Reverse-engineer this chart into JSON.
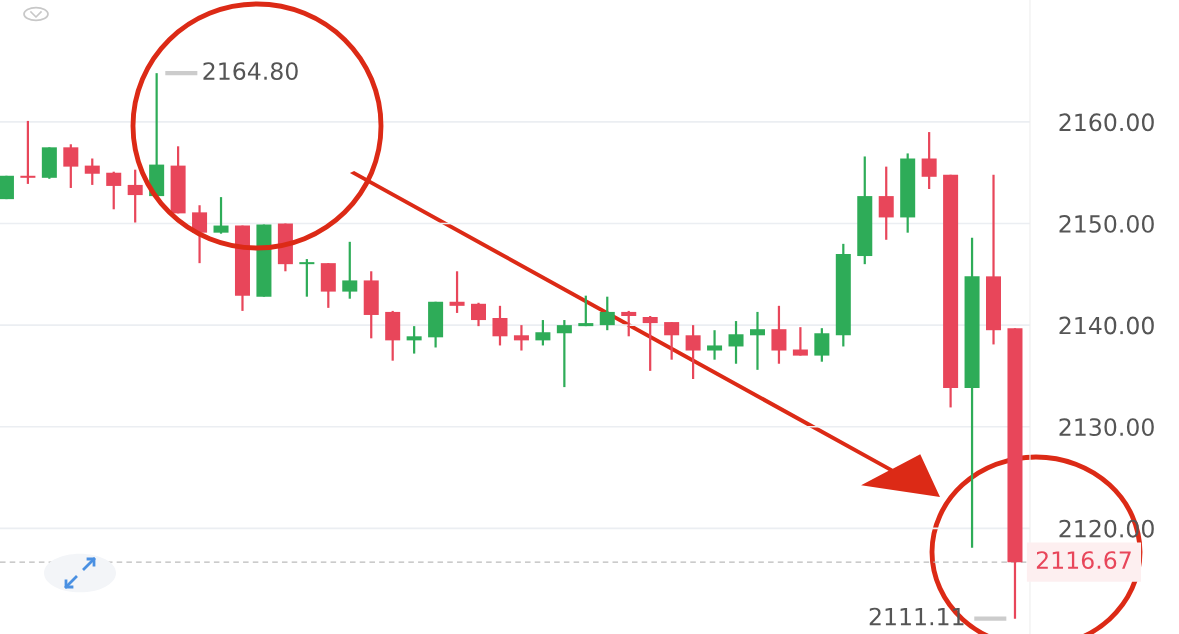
{
  "chart_data": {
    "type": "candlestick",
    "categories": [
      null,
      null,
      null,
      null,
      null,
      null,
      null,
      null,
      null,
      null,
      null,
      null,
      null,
      null,
      null,
      null,
      null,
      null,
      null,
      null,
      null,
      null,
      null,
      null,
      null,
      null,
      null,
      null,
      null,
      null,
      null,
      null,
      null,
      null,
      null,
      null,
      null,
      null,
      null,
      null,
      null,
      null,
      null,
      null,
      null,
      null,
      null,
      null
    ],
    "ohlc": [
      [
        2152.4,
        2154.7,
        2152.4,
        2154.7
      ],
      [
        2154.7,
        2160.1,
        2153.9,
        2154.5
      ],
      [
        2154.5,
        2157.5,
        2154.4,
        2157.5
      ],
      [
        2157.5,
        2157.8,
        2153.5,
        2155.6
      ],
      [
        2155.7,
        2156.4,
        2153.8,
        2154.9
      ],
      [
        2155.0,
        2155.1,
        2151.4,
        2153.7
      ],
      [
        2153.8,
        2155.3,
        2150.1,
        2152.8
      ],
      [
        2152.7,
        2164.8,
        2152.7,
        2155.8
      ],
      [
        2155.7,
        2157.6,
        2151.0,
        2151.0
      ],
      [
        2151.1,
        2151.8,
        2146.1,
        2149.1
      ],
      [
        2149.1,
        2152.6,
        2149.0,
        2149.8
      ],
      [
        2149.8,
        2149.8,
        2141.4,
        2142.9
      ],
      [
        2142.8,
        2149.9,
        2142.8,
        2149.9
      ],
      [
        2150.0,
        2150.0,
        2145.3,
        2146.0
      ],
      [
        2146.0,
        2146.5,
        2142.8,
        2146.2
      ],
      [
        2146.1,
        2146.1,
        2141.7,
        2143.3
      ],
      [
        2143.3,
        2148.2,
        2142.6,
        2144.4
      ],
      [
        2144.4,
        2145.3,
        2138.7,
        2141.0
      ],
      [
        2141.3,
        2141.4,
        2136.5,
        2138.5
      ],
      [
        2138.5,
        2139.9,
        2137.2,
        2138.9
      ],
      [
        2138.8,
        2142.3,
        2137.8,
        2142.3
      ],
      [
        2142.3,
        2145.3,
        2141.2,
        2141.9
      ],
      [
        2142.1,
        2142.2,
        2139.9,
        2140.5
      ],
      [
        2140.7,
        2141.9,
        2138.0,
        2138.9
      ],
      [
        2139.0,
        2140.0,
        2137.5,
        2138.5
      ],
      [
        2138.5,
        2140.5,
        2138.0,
        2139.3
      ],
      [
        2139.2,
        2140.5,
        2133.9,
        2140.0
      ],
      [
        2139.9,
        2142.9,
        2139.9,
        2140.2
      ],
      [
        2140.0,
        2142.8,
        2139.5,
        2141.3
      ],
      [
        2141.3,
        2141.4,
        2138.9,
        2140.9
      ],
      [
        2140.8,
        2140.9,
        2135.5,
        2140.2
      ],
      [
        2140.3,
        2140.3,
        2136.6,
        2139.0
      ],
      [
        2139.0,
        2140.0,
        2134.7,
        2137.5
      ],
      [
        2137.5,
        2139.5,
        2136.6,
        2138.0
      ],
      [
        2137.9,
        2140.4,
        2136.2,
        2139.1
      ],
      [
        2139.0,
        2141.3,
        2135.6,
        2139.6
      ],
      [
        2139.6,
        2141.9,
        2136.2,
        2137.5
      ],
      [
        2137.6,
        2139.8,
        2137.0,
        2137.0
      ],
      [
        2137.0,
        2139.7,
        2136.4,
        2139.2
      ],
      [
        2139.0,
        2148.0,
        2137.9,
        2147.0
      ],
      [
        2146.8,
        2156.6,
        2146.0,
        2152.7
      ],
      [
        2152.7,
        2155.6,
        2148.4,
        2150.6
      ],
      [
        2150.6,
        2156.9,
        2149.1,
        2156.4
      ],
      [
        2156.4,
        2159.0,
        2153.4,
        2154.6
      ],
      [
        2154.8,
        2154.8,
        2131.9,
        2133.8
      ],
      [
        2133.8,
        2148.6,
        2118.1,
        2144.8
      ],
      [
        2144.8,
        2154.8,
        2138.1,
        2139.5
      ],
      [
        2139.7,
        2139.7,
        2111.11,
        2116.67
      ]
    ],
    "colors": [
      "#2eac58",
      "#e8465a",
      "#2eac58",
      "#e8465a",
      "#e8465a",
      "#e8465a",
      "#e8465a",
      "#2eac58",
      "#e8465a",
      "#e8465a",
      "#2eac58",
      "#e8465a",
      "#2eac58",
      "#e8465a",
      "#2eac58",
      "#e8465a",
      "#2eac58",
      "#e8465a",
      "#e8465a",
      "#2eac58",
      "#2eac58",
      "#e8465a",
      "#e8465a",
      "#e8465a",
      "#e8465a",
      "#2eac58",
      "#2eac58",
      "#2eac58",
      "#2eac58",
      "#e8465a",
      "#e8465a",
      "#e8465a",
      "#e8465a",
      "#2eac58",
      "#2eac58",
      "#2eac58",
      "#e8465a",
      "#e8465a",
      "#2eac58",
      "#2eac58",
      "#2eac58",
      "#e8465a",
      "#2eac58",
      "#e8465a",
      "#e8465a",
      "#2eac58",
      "#e8465a",
      "#e8465a"
    ],
    "ylim": [
      2109.6,
      2172
    ],
    "yticks": [
      {
        "value": 2120,
        "label": "2120.00"
      },
      {
        "value": 2130,
        "label": "2130.00"
      },
      {
        "value": 2140,
        "label": "2140.00"
      },
      {
        "value": 2150,
        "label": "2150.00"
      },
      {
        "value": 2160,
        "label": "2160.00"
      }
    ],
    "tick_labels": "y",
    "grid": "y",
    "annotations": [
      "2164.80",
      "2111.11"
    ],
    "ref_lines": [
      {
        "axis": "y",
        "value": 2116.67,
        "label": "2116.67",
        "color": "#bbbbbb",
        "line_style": "dashed"
      }
    ]
  }
}
